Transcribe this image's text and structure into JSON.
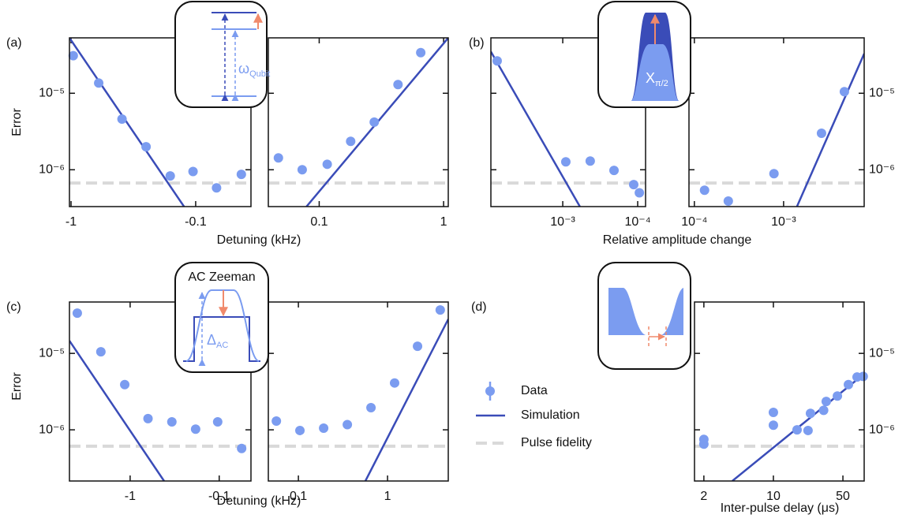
{
  "chart_data": [
    {
      "type": "scatter",
      "panel_label": "(a)",
      "ylabel": "Error",
      "xlabel": "Detuning (kHz)",
      "log_scale": true,
      "y_axis_side": "left",
      "ylim": [
        3.3e-07,
        5.3e-05
      ],
      "yticks": [
        {
          "value": 1e-06,
          "label": "10⁻⁶"
        },
        {
          "value": 1e-05,
          "label": "10⁻⁵"
        }
      ],
      "inset": {
        "symbol": "ω",
        "subscript": "Qubit"
      },
      "subplots": [
        {
          "xlim": [
            -1.03,
            -0.036
          ],
          "xticks": [
            -1,
            -0.1
          ],
          "x": [
            -0.96,
            -0.6,
            -0.39,
            -0.25,
            -0.16,
            -0.105,
            -0.068,
            -0.043
          ],
          "values": [
            3.1e-05,
            1.36e-05,
            4.6e-06,
            2e-06,
            8.3e-07,
            9.5e-07,
            5.8e-07,
            8.7e-07
          ],
          "sim": {
            "x": [
              -1.03,
              -0.124
            ],
            "values": [
              5.3e-05,
              3.3e-07
            ]
          },
          "pulse_fidelity": 6.7e-07
        },
        {
          "xlim": [
            0.039,
            1.09
          ],
          "xticks": [
            0.1,
            1
          ],
          "x": [
            0.047,
            0.073,
            0.116,
            0.179,
            0.277,
            0.43,
            0.655
          ],
          "values": [
            1.43e-06,
            1e-06,
            1.18e-06,
            2.35e-06,
            4.2e-06,
            1.3e-05,
            3.4e-05
          ],
          "sim": {
            "x": [
              0.079,
              1.09
            ],
            "values": [
              3.3e-07,
              5.3e-05
            ]
          },
          "pulse_fidelity": 6.7e-07
        }
      ]
    },
    {
      "type": "scatter",
      "panel_label": "(b)",
      "xlabel": "Relative amplitude change",
      "log_scale": true,
      "y_axis_side": "right",
      "ylim": [
        3.3e-07,
        5.3e-05
      ],
      "yticks": [
        {
          "value": 1e-06,
          "label": "10⁻⁶"
        },
        {
          "value": 1e-05,
          "label": "10⁻⁵"
        }
      ],
      "inset": {
        "symbol": "X",
        "subscript": "π/2"
      },
      "subplots": [
        {
          "xlim": [
            0.0091,
            7.85e-05
          ],
          "xticks": [
            {
              "value": 0.001,
              "label": "10⁻³"
            },
            {
              "value": 0.0001,
              "label": "10⁻⁴"
            }
          ],
          "x": [
            0.0075,
            0.00091,
            0.00043,
            0.000207,
            0.000113,
            9.5e-05
          ],
          "values": [
            2.65e-05,
            1.27e-06,
            1.3e-06,
            9.8e-07,
            6.4e-07,
            5e-07
          ],
          "sim": {
            "x": [
              0.0091,
              0.00059
            ],
            "values": [
              3.5e-05,
              3.3e-07
            ]
          },
          "pulse_fidelity": 6.7e-07
        },
        {
          "xlim": [
            8.7e-05,
            0.008
          ],
          "xticks": [
            {
              "value": 0.0001,
              "label": "10⁻⁴"
            },
            {
              "value": 0.001,
              "label": "10⁻³"
            }
          ],
          "x": [
            0.00013,
            0.00024,
            0.00078,
            0.00266,
            0.0048
          ],
          "values": [
            5.4e-07,
            3.9e-07,
            8.9e-07,
            3e-06,
            1.05e-05
          ],
          "sim": {
            "x": [
              0.00141,
              0.008
            ],
            "values": [
              3.3e-07,
              3.3e-05
            ]
          },
          "pulse_fidelity": 6.7e-07
        }
      ]
    },
    {
      "type": "scatter",
      "panel_label": "(c)",
      "ylabel": "Error",
      "xlabel": "Detuning (kHz)",
      "log_scale": true,
      "y_axis_side": "left",
      "ylim": [
        2.14e-07,
        4.7e-05
      ],
      "yticks": [
        {
          "value": 1e-06,
          "label": "10⁻⁶"
        },
        {
          "value": 1e-05,
          "label": "10⁻⁵"
        }
      ],
      "inset": {
        "title": "AC Zeeman",
        "symbol": "Δ",
        "subscript": "AC"
      },
      "subplots": [
        {
          "xlim": [
            -4.8,
            -0.044
          ],
          "xticks": [
            -1,
            -0.1
          ],
          "x": [
            -3.92,
            -2.13,
            -1.15,
            -0.63,
            -0.34,
            -0.184,
            -0.104,
            -0.056
          ],
          "values": [
            3.36e-05,
            1.05e-05,
            3.9e-06,
            1.4e-06,
            1.27e-06,
            1.02e-06,
            1.27e-06,
            5.7e-07
          ],
          "sim": {
            "x": [
              -4.8,
              -0.416
            ],
            "values": [
              1.46e-05,
              2.14e-07
            ]
          },
          "pulse_fidelity": 6.1e-07
        },
        {
          "xlim": [
            0.046,
            4.8
          ],
          "xticks": [
            0.1,
            1
          ],
          "x": [
            0.0566,
            0.104,
            0.192,
            0.354,
            0.652,
            1.2,
            2.17,
            3.9
          ],
          "values": [
            1.3e-06,
            9.8e-07,
            1.05e-06,
            1.17e-06,
            1.95e-06,
            4.1e-06,
            1.24e-05,
            3.7e-05
          ],
          "sim": {
            "x": [
              0.565,
              4.8
            ],
            "values": [
              2.14e-07,
              2.8e-05
            ]
          },
          "pulse_fidelity": 6.1e-07
        }
      ]
    },
    {
      "type": "scatter",
      "panel_label": "(d)",
      "xlabel": "Inter-pulse delay (μs)",
      "log_scale": true,
      "y_axis_side": "right",
      "ylim": [
        2.14e-07,
        4.7e-05
      ],
      "yticks": [
        {
          "value": 1e-06,
          "label": "10⁻⁶"
        },
        {
          "value": 1e-05,
          "label": "10⁻⁵"
        }
      ],
      "subplots": [
        {
          "xlim": [
            1.61,
            81.8
          ],
          "xticks": [
            2,
            10,
            50
          ],
          "x": [
            2,
            2,
            10,
            10,
            17.3,
            22.3,
            23.6,
            32,
            34,
            44,
            56.8,
            69.4,
            80
          ],
          "values": [
            7.5e-07,
            6.5e-07,
            1.69e-06,
            1.15e-06,
            1e-06,
            9.8e-07,
            1.64e-06,
            1.8e-06,
            2.35e-06,
            2.77e-06,
            3.9e-06,
            4.9e-06,
            5e-06
          ],
          "sim": {
            "x": [
              3.86,
              81.8
            ],
            "values": [
              2.14e-07,
              5.4e-06
            ]
          },
          "pulse_fidelity": 6.1e-07
        }
      ]
    }
  ],
  "legend": [
    {
      "name": "Data",
      "color": "#7b9cf0"
    },
    {
      "name": "Simulation",
      "color": "#3a4cb8"
    },
    {
      "name": "Pulse fidelity",
      "color": "#d9d9d9"
    }
  ]
}
